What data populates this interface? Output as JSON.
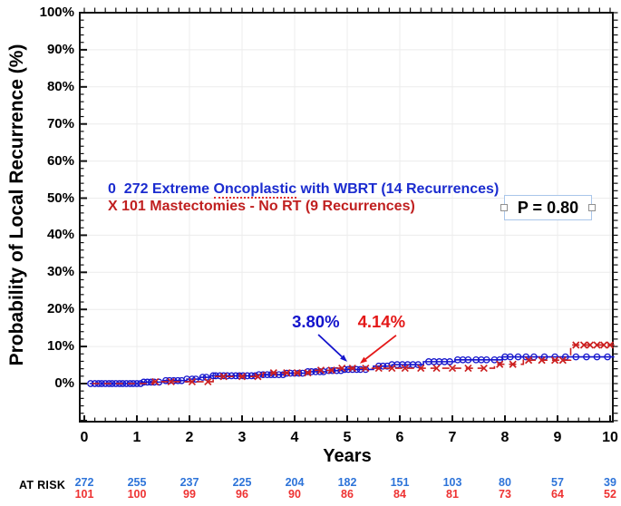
{
  "chart_data": {
    "type": "line",
    "subtype": "kaplan-meier-step",
    "title": "",
    "xlabel": "Years",
    "ylabel": "Probability of Local Recurrence (%)",
    "x_ticks": [
      "0",
      "1",
      "2",
      "3",
      "4",
      "5",
      "6",
      "7",
      "8",
      "9",
      "10"
    ],
    "y_tick_labels": [
      "0%",
      "10%",
      "20%",
      "30%",
      "40%",
      "50%",
      "60%",
      "70%",
      "80%",
      "90%",
      "100%"
    ],
    "xlim": [
      -0.1,
      10.15
    ],
    "ylim": [
      -10,
      100
    ],
    "grid": true,
    "legend_position": "inside-left-middle",
    "series": [
      {
        "name": "272 Extreme Oncoplastic with WBRT (14 Recurrences)",
        "marker": "circle",
        "line": "solid",
        "color": "#1414cc",
        "steps": [
          [
            0.1,
            0
          ],
          [
            1.1,
            0.4
          ],
          [
            1.5,
            0.8
          ],
          [
            1.95,
            1.2
          ],
          [
            2.2,
            1.7
          ],
          [
            2.4,
            2.1
          ],
          [
            3.3,
            2.4
          ],
          [
            3.8,
            2.8
          ],
          [
            4.2,
            3.2
          ],
          [
            4.6,
            3.5
          ],
          [
            4.9,
            3.8
          ],
          [
            5.5,
            4.7
          ],
          [
            5.85,
            5.1
          ],
          [
            6.45,
            5.9
          ],
          [
            7.05,
            6.4
          ],
          [
            7.95,
            7.2
          ],
          [
            10.08,
            7.2
          ]
        ],
        "censor_times": [
          0.12,
          0.2,
          0.27,
          0.33,
          0.4,
          0.47,
          0.53,
          0.6,
          0.67,
          0.73,
          0.8,
          0.87,
          0.93,
          1.0,
          1.07,
          1.13,
          1.2,
          1.27,
          1.33,
          1.42,
          1.55,
          1.62,
          1.7,
          1.78,
          1.85,
          1.95,
          2.05,
          2.12,
          2.25,
          2.32,
          2.45,
          2.5,
          2.58,
          2.65,
          2.72,
          2.8,
          2.88,
          2.95,
          3.02,
          3.1,
          3.18,
          3.25,
          3.32,
          3.4,
          3.48,
          3.55,
          3.62,
          3.7,
          3.78,
          3.85,
          3.92,
          4.0,
          4.08,
          4.15,
          4.25,
          4.32,
          4.4,
          4.48,
          4.55,
          4.65,
          4.72,
          4.8,
          4.88,
          4.95,
          5.02,
          5.1,
          5.18,
          5.25,
          5.35,
          5.6,
          5.68,
          5.76,
          5.85,
          5.95,
          6.05,
          6.15,
          6.25,
          6.35,
          6.55,
          6.65,
          6.75,
          6.85,
          6.95,
          7.1,
          7.2,
          7.3,
          7.45,
          7.55,
          7.65,
          7.8,
          7.9,
          8.0,
          8.1,
          8.25,
          8.4,
          8.55,
          8.75,
          8.95,
          9.15,
          9.35,
          9.55,
          9.75,
          9.95
        ]
      },
      {
        "name": "101 Mastectomies - No RT (9 Recurrences)",
        "marker": "x",
        "line": "dashed",
        "color": "#cc2020",
        "steps": [
          [
            0.15,
            0
          ],
          [
            1.3,
            0.5
          ],
          [
            2.45,
            1.9
          ],
          [
            3.4,
            2.9
          ],
          [
            4.3,
            3.6
          ],
          [
            4.8,
            4.14
          ],
          [
            7.8,
            5.2
          ],
          [
            8.35,
            6.3
          ],
          [
            9.25,
            10.4
          ],
          [
            10.08,
            10.4
          ]
        ],
        "censor_times": [
          1.35,
          1.65,
          2.05,
          2.35,
          2.65,
          3.0,
          3.3,
          3.6,
          3.85,
          4.05,
          4.25,
          4.5,
          4.7,
          4.9,
          5.1,
          5.35,
          5.6,
          5.85,
          6.1,
          6.4,
          6.7,
          7.0,
          7.3,
          7.6,
          7.9,
          8.15,
          8.45,
          8.7,
          8.95,
          9.1,
          9.35,
          9.5,
          9.62,
          9.75,
          9.88,
          10.0
        ]
      }
    ],
    "annotations": [
      {
        "label": "3.80%",
        "color": "#1414cc",
        "text_x": 3.95,
        "text_y": 15.2,
        "tail": [
          4.45,
          13.2
        ],
        "tip": [
          5.0,
          5.9
        ]
      },
      {
        "label": "4.14%",
        "color": "#e41818",
        "text_x": 5.2,
        "text_y": 15.2,
        "tail": [
          5.93,
          13.0
        ],
        "tip": [
          5.24,
          5.4
        ]
      }
    ]
  },
  "p_value_box": {
    "text": "P = 0.80"
  },
  "legend": {
    "line1_prefix": "0  272 Extreme ",
    "line1_misspelled": "Oncoplastic",
    "line1_suffix": " with WBRT (14 Recurrences)",
    "line1_color": "#1b2ccf",
    "line2": "X 101 Mastectomies - No RT (9 Recurrences)",
    "line2_color": "#c02020"
  },
  "at_risk": {
    "label": "AT RISK",
    "years": [
      0,
      1,
      2,
      3,
      4,
      5,
      6,
      7,
      8,
      9,
      10
    ],
    "rows": [
      {
        "name": "oncoplastic-wbrt",
        "color": "#2e74d9",
        "values": [
          "272",
          "255",
          "237",
          "225",
          "204",
          "182",
          "151",
          "103",
          "80",
          "57",
          "39"
        ]
      },
      {
        "name": "mastectomy-no-rt",
        "color": "#ee3232",
        "values": [
          "101",
          "100",
          "99",
          "96",
          "90",
          "86",
          "84",
          "81",
          "73",
          "64",
          "52"
        ]
      }
    ]
  },
  "colors": {
    "blue_curve": "#1414cc",
    "red_curve": "#cc2020",
    "grid": "#ececec",
    "axis": "#111111",
    "pbox_border": "#a9c6ea"
  }
}
